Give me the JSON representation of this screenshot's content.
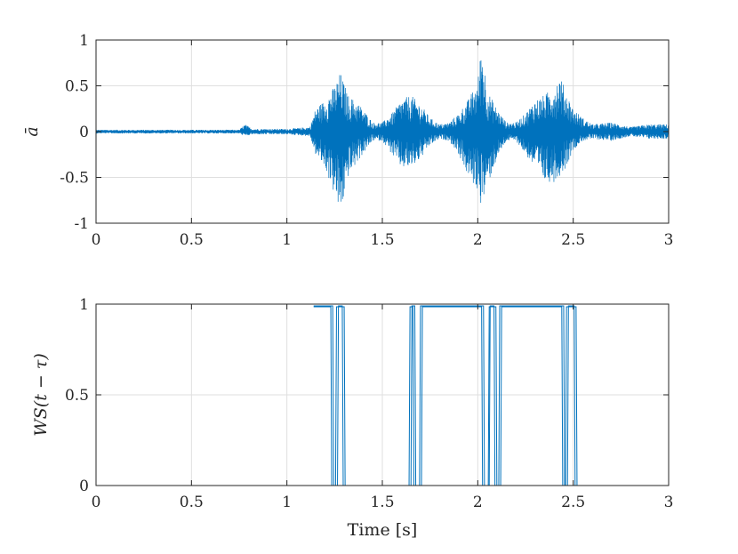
{
  "colors": {
    "series": "#0072BD",
    "axis": "#262626",
    "grid": "#dfdfdf",
    "background": "#ffffff"
  },
  "chart_data": [
    {
      "type": "line",
      "title": "",
      "xlabel": "",
      "ylabel": "ā",
      "xlim": [
        0,
        3
      ],
      "ylim": [
        -1,
        1
      ],
      "xticks": [
        0,
        0.5,
        1,
        1.5,
        2,
        2.5,
        3
      ],
      "xtick_labels": [
        "0",
        "0.5",
        "1",
        "1.5",
        "2",
        "2.5",
        "3"
      ],
      "yticks": [
        -1,
        -0.5,
        0,
        0.5,
        1
      ],
      "ytick_labels": [
        "-1",
        "-0.5",
        "0",
        "0.5",
        "1"
      ],
      "grid": true,
      "legend": "none",
      "series": [
        {
          "style": "dense oscillating signal, amplitude envelope",
          "x": [
            0.0,
            0.3,
            0.6,
            0.75,
            0.78,
            0.82,
            1.0,
            1.12,
            1.15,
            1.2,
            1.25,
            1.28,
            1.32,
            1.38,
            1.45,
            1.5,
            1.55,
            1.6,
            1.65,
            1.7,
            1.75,
            1.8,
            1.85,
            1.9,
            1.95,
            2.0,
            2.02,
            2.05,
            2.1,
            2.15,
            2.2,
            2.25,
            2.3,
            2.35,
            2.4,
            2.43,
            2.46,
            2.5,
            2.55,
            2.6,
            2.7,
            2.8,
            2.9,
            3.0
          ],
          "upper": [
            0.02,
            0.02,
            0.02,
            0.02,
            0.08,
            0.03,
            0.03,
            0.05,
            0.25,
            0.35,
            0.5,
            0.65,
            0.4,
            0.3,
            0.1,
            0.1,
            0.2,
            0.35,
            0.4,
            0.3,
            0.15,
            0.08,
            0.1,
            0.2,
            0.35,
            0.55,
            1.0,
            0.45,
            0.25,
            0.1,
            0.1,
            0.2,
            0.35,
            0.4,
            0.5,
            0.62,
            0.45,
            0.25,
            0.15,
            0.08,
            0.1,
            0.05,
            0.08,
            0.08
          ],
          "lower": [
            -0.02,
            -0.02,
            -0.02,
            -0.02,
            -0.05,
            -0.03,
            -0.03,
            -0.05,
            -0.25,
            -0.4,
            -0.7,
            -0.92,
            -0.5,
            -0.3,
            -0.1,
            -0.1,
            -0.25,
            -0.4,
            -0.4,
            -0.3,
            -0.15,
            -0.08,
            -0.1,
            -0.25,
            -0.5,
            -0.65,
            -0.82,
            -0.6,
            -0.3,
            -0.1,
            -0.1,
            -0.25,
            -0.4,
            -0.55,
            -0.55,
            -0.48,
            -0.4,
            -0.2,
            -0.1,
            -0.08,
            -0.1,
            -0.05,
            -0.08,
            -0.08
          ]
        }
      ]
    },
    {
      "type": "line",
      "title": "",
      "xlabel": "Time [s]",
      "ylabel": "WS(t − τ)",
      "xlim": [
        0,
        3
      ],
      "ylim": [
        0,
        1
      ],
      "xticks": [
        0,
        0.5,
        1,
        1.5,
        2,
        2.5,
        3
      ],
      "xtick_labels": [
        "0",
        "0.5",
        "1",
        "1.5",
        "2",
        "2.5",
        "3"
      ],
      "yticks": [
        0,
        0.5,
        1
      ],
      "ytick_labels": [
        "0",
        "0.5",
        "1"
      ],
      "grid": true,
      "legend": "none",
      "series": [
        {
          "style": "step",
          "x": [
            1.14,
            1.24,
            1.245,
            1.265,
            1.27,
            1.29,
            1.295,
            1.65,
            1.655,
            1.67,
            1.675,
            1.695,
            1.7,
            2.03,
            2.035,
            2.06,
            2.065,
            2.085,
            2.09,
            2.11,
            2.115,
            2.45,
            2.455,
            2.47,
            2.475,
            2.505,
            2.51,
            3.0
          ],
          "y": [
            0.99,
            0.99,
            0,
            0,
            0.99,
            0.99,
            0,
            0,
            0.99,
            0.99,
            0,
            0,
            0.99,
            0.99,
            0,
            0,
            0.99,
            0.99,
            0,
            0,
            0.99,
            0.99,
            0,
            0,
            0.99,
            0.99,
            0,
            0
          ]
        },
        {
          "style": "step",
          "x": [
            1.14,
            1.23,
            1.235,
            1.255,
            1.26,
            1.3,
            1.305,
            1.64,
            1.645,
            1.66,
            1.665,
            1.705,
            1.71,
            2.02,
            2.025,
            2.055,
            2.06,
            2.095,
            2.1,
            2.12,
            2.125,
            2.44,
            2.445,
            2.46,
            2.465,
            2.515,
            2.52,
            3.0
          ],
          "y": [
            0.985,
            0.985,
            0,
            0,
            0.985,
            0.985,
            0,
            0,
            0.985,
            0.985,
            0,
            0,
            0.985,
            0.985,
            0,
            0,
            0.985,
            0.985,
            0,
            0,
            0.985,
            0.985,
            0,
            0,
            0.985,
            0.985,
            0,
            0
          ]
        }
      ]
    }
  ]
}
